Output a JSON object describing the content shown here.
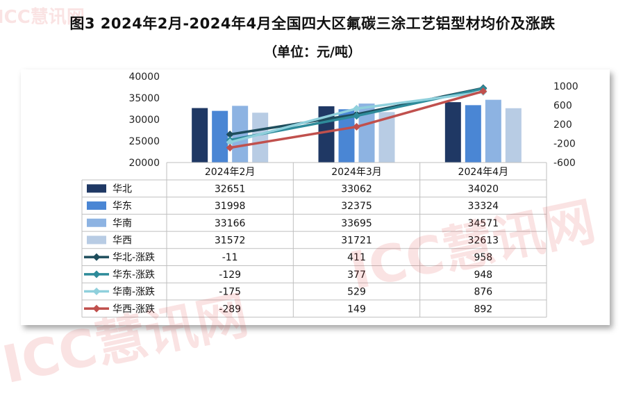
{
  "title": "图3 2024年2月-2024年4月全国四大区氟碳三涂工艺铝型材均价及涨跌",
  "subtitle": "（单位：元/吨）",
  "watermark": "ICC慧讯网",
  "chart_data": {
    "type": "bar",
    "categories": [
      "2024年2月",
      "2024年3月",
      "2024年4月"
    ],
    "ylim": [
      20000,
      40000
    ],
    "y_ticks": [
      "40000",
      "35000",
      "30000",
      "25000",
      "20000"
    ],
    "y2lim": [
      -600,
      1000
    ],
    "y2_ticks": [
      "1000",
      "600",
      "200",
      "-200",
      "-600"
    ],
    "grid": false,
    "legend": "table-below",
    "series": [
      {
        "name": "华北",
        "kind": "bar",
        "axis": "left",
        "color": "#1f3864",
        "values": [
          32651,
          33062,
          34020
        ]
      },
      {
        "name": "华东",
        "kind": "bar",
        "axis": "left",
        "color": "#4a86d4",
        "values": [
          31998,
          32375,
          33324
        ]
      },
      {
        "name": "华南",
        "kind": "bar",
        "axis": "left",
        "color": "#8db3e2",
        "values": [
          33166,
          33695,
          34571
        ]
      },
      {
        "name": "华西",
        "kind": "bar",
        "axis": "left",
        "color": "#b8cce4",
        "values": [
          31572,
          31721,
          32613
        ]
      },
      {
        "name": "华北-涨跌",
        "kind": "line",
        "axis": "right",
        "color": "#1e4d5c",
        "values": [
          -11,
          411,
          958
        ]
      },
      {
        "name": "华东-涨跌",
        "kind": "line",
        "axis": "right",
        "color": "#2e8b9a",
        "values": [
          -129,
          377,
          948
        ]
      },
      {
        "name": "华南-涨跌",
        "kind": "line",
        "axis": "right",
        "color": "#8fd0dc",
        "values": [
          -175,
          529,
          876
        ]
      },
      {
        "name": "华西-涨跌",
        "kind": "line",
        "axis": "right",
        "color": "#c0504d",
        "values": [
          -289,
          149,
          892
        ]
      }
    ],
    "table_values": [
      [
        "32651",
        "33062",
        "34020"
      ],
      [
        "31998",
        "32375",
        "33324"
      ],
      [
        "33166",
        "33695",
        "34571"
      ],
      [
        "31572",
        "31721",
        "32613"
      ],
      [
        "-11",
        "411",
        "958"
      ],
      [
        "-129",
        "377",
        "948"
      ],
      [
        "-175",
        "529",
        "876"
      ],
      [
        "-289",
        "149",
        "892"
      ]
    ]
  }
}
